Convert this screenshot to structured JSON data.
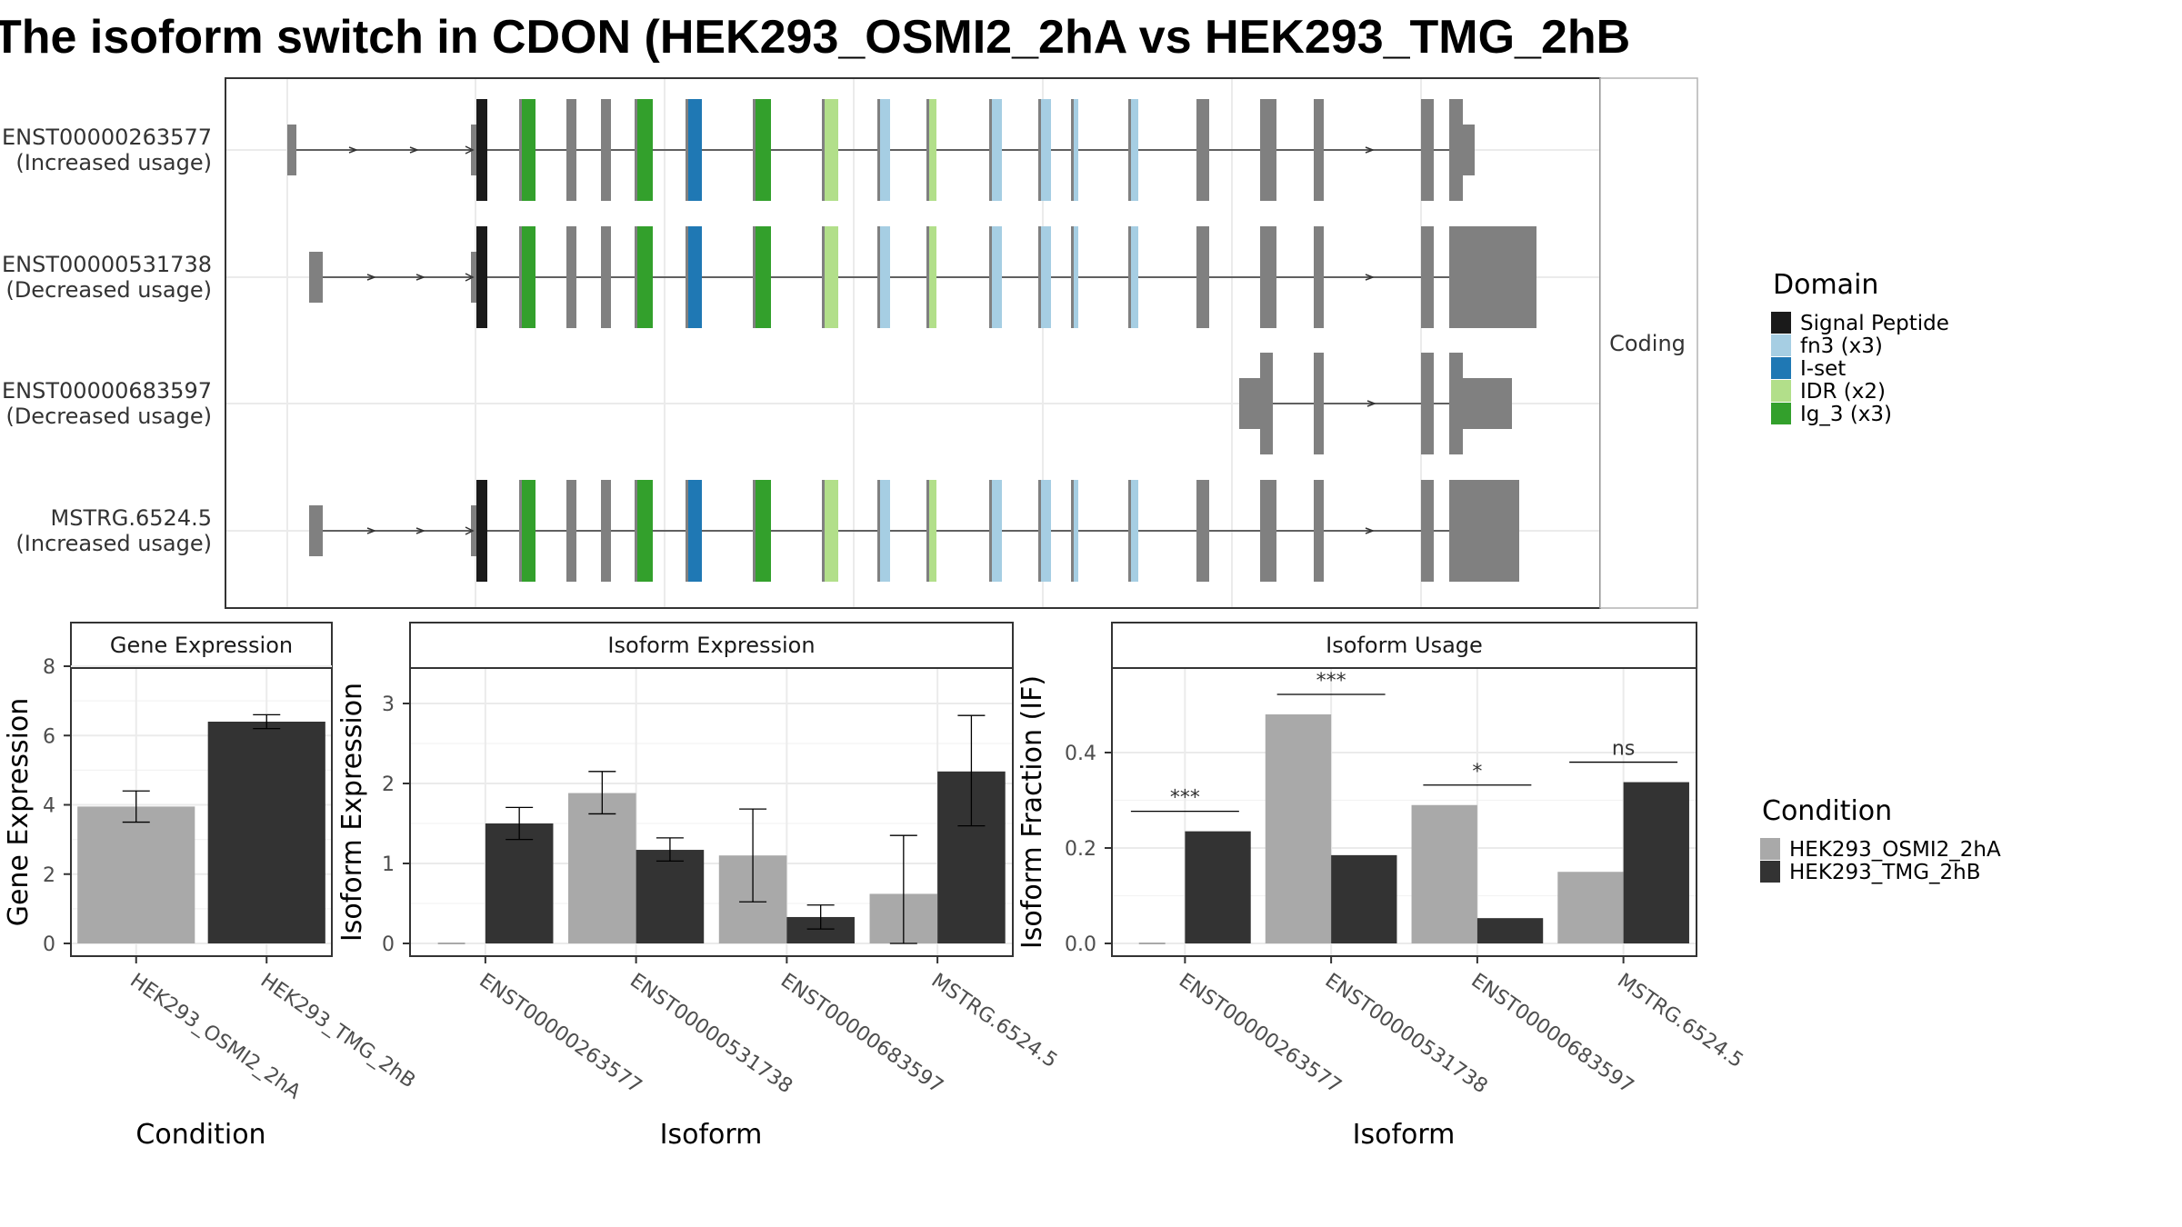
{
  "title": "The isoform switch in CDON (HEK293_OSMI2_2hA vs HEK293_TMG_2hB",
  "colors": {
    "exon": "#808080",
    "cond_a": "#a9a9a9",
    "cond_b": "#333333",
    "Signal Peptide": "#1a1a1a",
    "fn3": "#a6cee3",
    "I-set": "#1f78b4",
    "IDR": "#b2df8a",
    "Ig_3": "#33a02c"
  },
  "structure": {
    "strip_label": "Coding",
    "legend_title": "Domain",
    "legend_items": [
      {
        "label": "Signal Peptide",
        "color_key": "Signal Peptide"
      },
      {
        "label": "fn3 (x3)",
        "color_key": "fn3"
      },
      {
        "label": "I-set",
        "color_key": "I-set"
      },
      {
        "label": "IDR (x2)",
        "color_key": "IDR"
      },
      {
        "label": "Ig_3 (x3)",
        "color_key": "Ig_3"
      }
    ],
    "isoforms": [
      {
        "id": "ENST00000263577",
        "note": "(Increased usage)"
      },
      {
        "id": "ENST00000531738",
        "note": "(Decreased usage)"
      },
      {
        "id": "ENST00000683597",
        "note": "(Decreased usage)"
      },
      {
        "id": "MSTRG.6524.5",
        "note": "(Increased usage)"
      }
    ]
  },
  "chart_data": [
    {
      "type": "bar",
      "title": "Gene Expression",
      "xlabel": "Condition",
      "ylabel": "Gene Expression",
      "ylim": [
        0,
        8.3
      ],
      "yticks": [
        0,
        2,
        4,
        6,
        8
      ],
      "categories": [
        "HEK293_OSMI2_2hA",
        "HEK293_TMG_2hB"
      ],
      "values": [
        3.95,
        6.4
      ],
      "errors": [
        [
          3.5,
          4.4
        ],
        [
          6.2,
          6.6
        ]
      ],
      "color_keys": [
        "cond_a",
        "cond_b"
      ]
    },
    {
      "type": "bar",
      "title": "Isoform Expression",
      "xlabel": "Isoform",
      "ylabel": "Isoform Expression",
      "ylim": [
        -0.15,
        3.3
      ],
      "yticks": [
        0,
        1,
        2,
        3
      ],
      "categories": [
        "ENST00000263577",
        "ENST00000531738",
        "ENST00000683597",
        "MSTRG.6524.5"
      ],
      "series": [
        {
          "name": "HEK293_OSMI2_2hA",
          "values": [
            0,
            1.88,
            1.1,
            0.62
          ],
          "errors": [
            [
              0,
              0
            ],
            [
              1.62,
              2.15
            ],
            [
              0.52,
              1.68
            ],
            [
              0,
              1.35
            ]
          ]
        },
        {
          "name": "HEK293_TMG_2hB",
          "values": [
            1.5,
            1.17,
            0.33,
            2.15
          ],
          "errors": [
            [
              1.3,
              1.7
            ],
            [
              1.03,
              1.32
            ],
            [
              0.18,
              0.48
            ],
            [
              1.47,
              2.85
            ]
          ]
        }
      ]
    },
    {
      "type": "bar",
      "title": "Isoform Usage",
      "xlabel": "Isoform",
      "ylabel": "Isoform Fraction (IF)",
      "ylim": [
        -0.03,
        0.58
      ],
      "yticks": [
        0.0,
        0.2,
        0.4
      ],
      "ytick_labels": [
        "0.0",
        "0.2",
        "0.4"
      ],
      "categories": [
        "ENST00000263577",
        "ENST00000531738",
        "ENST00000683597",
        "MSTRG.6524.5"
      ],
      "series": [
        {
          "name": "HEK293_OSMI2_2hA",
          "values": [
            0.0,
            0.48,
            0.29,
            0.15
          ]
        },
        {
          "name": "HEK293_TMG_2hB",
          "values": [
            0.235,
            0.185,
            0.053,
            0.338
          ]
        }
      ],
      "significance": [
        "***",
        "***",
        "*",
        "ns"
      ]
    }
  ],
  "condition_legend": {
    "title": "Condition",
    "items": [
      {
        "label": "HEK293_OSMI2_2hA",
        "color_key": "cond_a"
      },
      {
        "label": "HEK293_TMG_2hB",
        "color_key": "cond_b"
      }
    ]
  }
}
